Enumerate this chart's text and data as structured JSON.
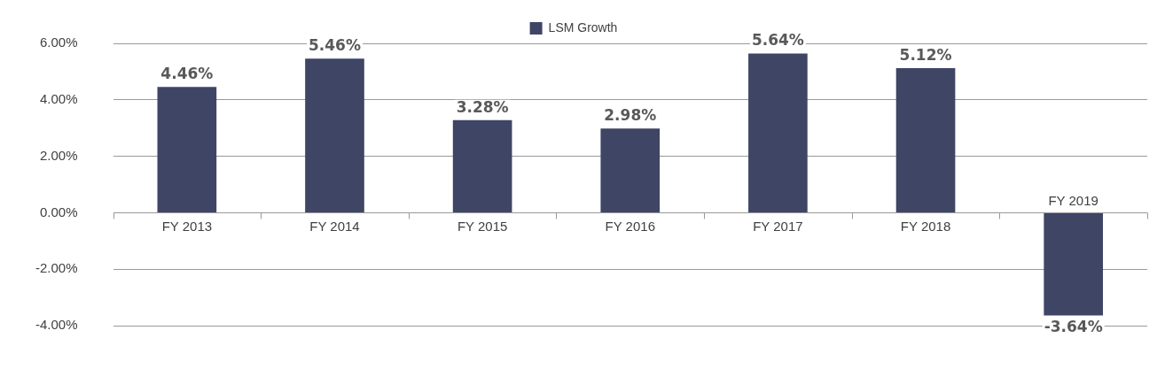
{
  "chart_data": {
    "type": "bar",
    "categories": [
      "FY 2013",
      "FY 2014",
      "FY 2015",
      "FY 2016",
      "FY 2017",
      "FY 2018",
      "FY 2019"
    ],
    "series": [
      {
        "name": "LSM Growth",
        "color": "#3f4565",
        "values": [
          4.46,
          5.46,
          3.28,
          2.98,
          5.64,
          5.12,
          -3.64
        ],
        "value_labels": [
          "4.46%",
          "5.46%",
          "3.28%",
          "2.98%",
          "5.64%",
          "5.12%",
          "-3.64%"
        ]
      }
    ],
    "ylim": [
      -4,
      6
    ],
    "yticks": [
      {
        "value": -4,
        "label": "-4.00%"
      },
      {
        "value": -2,
        "label": "-2.00%"
      },
      {
        "value": 0,
        "label": "0.00%"
      },
      {
        "value": 2,
        "label": "2.00%"
      },
      {
        "value": 4,
        "label": "4.00%"
      },
      {
        "value": 6,
        "label": "6.00%"
      }
    ],
    "grid": "y",
    "legend": "top"
  }
}
